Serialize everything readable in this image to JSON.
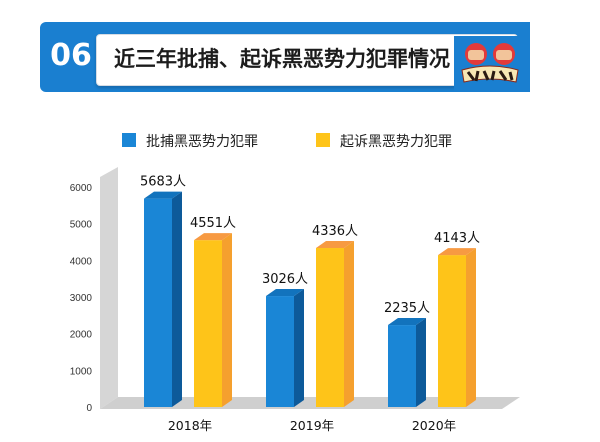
{
  "header": {
    "number": "06",
    "title": "近三年批捕、起诉黑恶势力犯罪情况",
    "emblem_icon": "anti-gang-fist-emblem"
  },
  "colors": {
    "banner": "#1a7fd0",
    "series_blue": "#1a86d6",
    "series_blue_top": "#1273bd",
    "series_blue_side": "#0d5a9a",
    "series_orange": "#fec419",
    "series_orange_top": "#f79a42",
    "series_orange_side": "#f5a02e",
    "wall": "#d6d6d6",
    "floor": "#cfcfcf"
  },
  "chart_data": {
    "type": "bar",
    "style": "3d-grouped",
    "categories": [
      "2018年",
      "2019年",
      "2020年"
    ],
    "series": [
      {
        "name": "批捕黑恶势力犯罪",
        "values": [
          5683,
          3026,
          2235
        ],
        "labels": [
          "5683人",
          "3026人",
          "2235人"
        ]
      },
      {
        "name": "起诉黑恶势力犯罪",
        "values": [
          4551,
          4336,
          4143
        ],
        "labels": [
          "4551人",
          "4336人",
          "4143人"
        ]
      }
    ],
    "yticks": [
      "0",
      "1000",
      "2000",
      "3000",
      "4000",
      "5000",
      "6000"
    ],
    "ylim": [
      0,
      6000
    ],
    "grid": false,
    "legend": "top"
  }
}
